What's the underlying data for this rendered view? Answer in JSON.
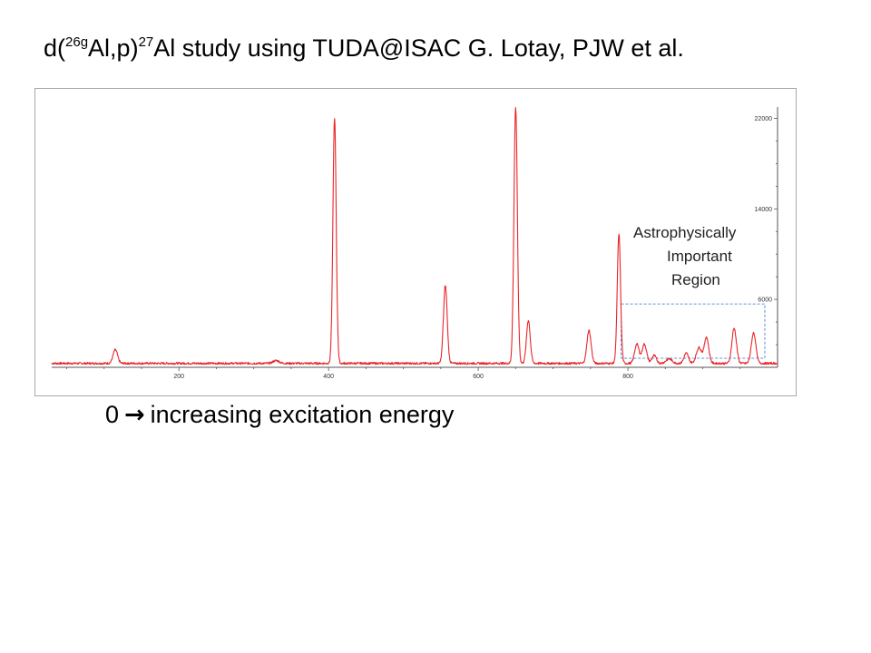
{
  "slide": {
    "title": {
      "prefix": "d(",
      "sup1": "26g",
      "mid": "Al,p)",
      "sup2": "27",
      "rest": "Al study using TUDA@ISAC G. Lotay, PJW et al."
    },
    "caption": {
      "start": "0",
      "arrow": "→",
      "text": "increasing excitation energy"
    },
    "region_label": [
      "Astrophysically",
      "Important",
      "Region"
    ]
  },
  "colors": {
    "spectrum": "#e8262a",
    "region_box": "#2e6fd6",
    "axis": "#555555",
    "frame": "#a8a8a8"
  },
  "chart_data": {
    "type": "line",
    "xlim": [
      30,
      1000
    ],
    "ylim": [
      0,
      23000
    ],
    "x_ticks": [
      200,
      400,
      600,
      800
    ],
    "y_ticks": [
      6000,
      14000,
      22000
    ],
    "grid": false,
    "legend": "none",
    "baseline": 350,
    "series": [
      {
        "peaks": [
          {
            "x": 115,
            "height": 1200,
            "width": 3
          },
          {
            "x": 330,
            "height": 250,
            "width": 4
          },
          {
            "x": 408,
            "height": 21600,
            "width": 2.2
          },
          {
            "x": 556,
            "height": 6900,
            "width": 2.5
          },
          {
            "x": 650,
            "height": 22600,
            "width": 2.3
          },
          {
            "x": 667,
            "height": 3800,
            "width": 2.5
          },
          {
            "x": 748,
            "height": 2900,
            "width": 2.8
          },
          {
            "x": 788,
            "height": 11400,
            "width": 2.2
          },
          {
            "x": 812,
            "height": 1700,
            "width": 3
          },
          {
            "x": 822,
            "height": 1700,
            "width": 3
          },
          {
            "x": 835,
            "height": 700,
            "width": 3
          },
          {
            "x": 855,
            "height": 400,
            "width": 4
          },
          {
            "x": 878,
            "height": 900,
            "width": 3
          },
          {
            "x": 895,
            "height": 1400,
            "width": 3.5
          },
          {
            "x": 905,
            "height": 2300,
            "width": 3
          },
          {
            "x": 942,
            "height": 3100,
            "width": 3
          },
          {
            "x": 968,
            "height": 2700,
            "width": 3
          }
        ]
      }
    ],
    "highlight_region": {
      "x": [
        791,
        983
      ],
      "y": [
        0,
        5600
      ]
    }
  }
}
